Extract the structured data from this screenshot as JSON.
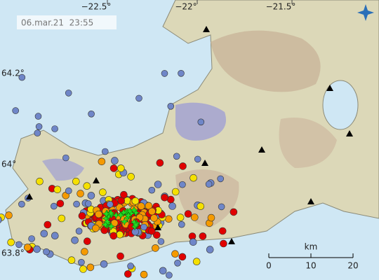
{
  "timestamp": "06.mar.21  23:55",
  "longitude_labels": [
    "−22.5°",
    "−22°",
    "−21.5°"
  ],
  "latitude_labels": [
    "64.2°",
    "64°",
    "63.8°"
  ],
  "scale_bar": {
    "unit": "km",
    "labels": [
      "0",
      "10",
      "20"
    ]
  }
}
